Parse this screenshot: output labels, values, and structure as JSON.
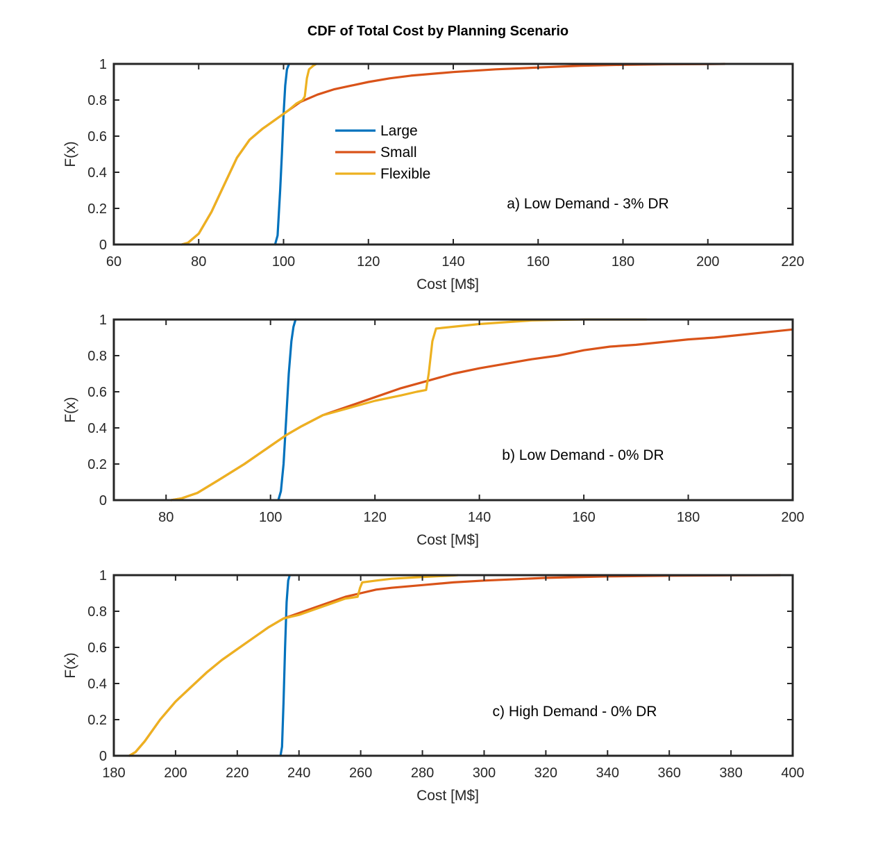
{
  "figure": {
    "title": "CDF of Total Cost by Planning Scenario"
  },
  "colors": {
    "Large": "#0072bd",
    "Small": "#d95319",
    "Flexible": "#edb120",
    "axis": "#262626"
  },
  "chart_data": [
    {
      "type": "line",
      "title": "",
      "annotation": "a) Low Demand - 3% DR",
      "xlabel": "Cost [M$]",
      "ylabel": "F(x)",
      "xlim": [
        60,
        220
      ],
      "ylim": [
        0,
        1
      ],
      "xticks": [
        60,
        80,
        100,
        120,
        140,
        160,
        180,
        200,
        220
      ],
      "yticks": [
        0,
        0.2,
        0.4,
        0.6,
        0.8,
        1
      ],
      "grid": false,
      "legend": {
        "placement": "inside-upper-middle",
        "entries": [
          "Large",
          "Small",
          "Flexible"
        ]
      },
      "series": [
        {
          "name": "Large",
          "x": [
            98,
            98.6,
            99.2,
            99.6,
            100,
            100.4,
            100.8,
            101.3
          ],
          "y": [
            0,
            0.05,
            0.3,
            0.5,
            0.72,
            0.88,
            0.97,
            1.0
          ]
        },
        {
          "name": "Small",
          "x": [
            76,
            77.5,
            80,
            83,
            86,
            89,
            92,
            95,
            98,
            101,
            104,
            108,
            112,
            116,
            120,
            125,
            130,
            140,
            150,
            160,
            170,
            180,
            190,
            200,
            204
          ],
          "y": [
            0,
            0.01,
            0.06,
            0.18,
            0.33,
            0.48,
            0.58,
            0.64,
            0.69,
            0.74,
            0.79,
            0.83,
            0.86,
            0.88,
            0.9,
            0.92,
            0.935,
            0.955,
            0.97,
            0.98,
            0.99,
            0.995,
            0.998,
            0.999,
            1.0
          ]
        },
        {
          "name": "Flexible",
          "x": [
            76,
            77.5,
            80,
            83,
            86,
            89,
            92,
            95,
            98,
            101,
            103,
            104.5,
            105,
            105.5,
            106,
            107,
            107.7
          ],
          "y": [
            0,
            0.01,
            0.06,
            0.18,
            0.33,
            0.48,
            0.58,
            0.64,
            0.69,
            0.74,
            0.78,
            0.8,
            0.82,
            0.92,
            0.97,
            0.99,
            1.0
          ]
        }
      ]
    },
    {
      "type": "line",
      "title": "",
      "annotation": "b) Low Demand - 0% DR",
      "xlabel": "Cost [M$]",
      "ylabel": "F(x)",
      "xlim": [
        70,
        200
      ],
      "ylim": [
        0,
        1
      ],
      "xticks": [
        80,
        100,
        120,
        140,
        160,
        180,
        200
      ],
      "yticks": [
        0,
        0.2,
        0.4,
        0.6,
        0.8,
        1
      ],
      "grid": false,
      "series": [
        {
          "name": "Large",
          "x": [
            101.5,
            102,
            102.5,
            103,
            103.5,
            104,
            104.4,
            104.8
          ],
          "y": [
            0,
            0.05,
            0.2,
            0.45,
            0.7,
            0.88,
            0.96,
            1.0
          ]
        },
        {
          "name": "Small",
          "x": [
            81,
            83,
            86,
            90,
            95,
            100,
            103,
            106,
            110,
            115,
            120,
            125,
            130,
            135,
            140,
            145,
            150,
            155,
            160,
            165,
            170,
            175,
            180,
            185,
            190,
            195,
            200
          ],
          "y": [
            0,
            0.01,
            0.04,
            0.11,
            0.2,
            0.3,
            0.36,
            0.41,
            0.47,
            0.52,
            0.57,
            0.62,
            0.66,
            0.7,
            0.73,
            0.755,
            0.78,
            0.8,
            0.83,
            0.85,
            0.86,
            0.875,
            0.89,
            0.9,
            0.915,
            0.93,
            0.945
          ]
        },
        {
          "name": "Flexible",
          "x": [
            81,
            83,
            86,
            90,
            95,
            100,
            103,
            106,
            110,
            115,
            120,
            125,
            128,
            129.8,
            130.3,
            131,
            131.7,
            135,
            140,
            145,
            150,
            155,
            160,
            165,
            172
          ],
          "y": [
            0,
            0.01,
            0.04,
            0.11,
            0.2,
            0.3,
            0.36,
            0.41,
            0.47,
            0.51,
            0.55,
            0.58,
            0.6,
            0.61,
            0.7,
            0.88,
            0.95,
            0.96,
            0.975,
            0.985,
            0.995,
            0.998,
            1.0,
            1.0,
            1.0
          ]
        }
      ]
    },
    {
      "type": "line",
      "title": "",
      "annotation": "c) High Demand - 0% DR",
      "xlabel": "Cost [M$]",
      "ylabel": "F(x)",
      "xlim": [
        180,
        400
      ],
      "ylim": [
        0,
        1
      ],
      "xticks": [
        180,
        200,
        220,
        240,
        260,
        280,
        300,
        320,
        340,
        360,
        380,
        400
      ],
      "yticks": [
        0,
        0.2,
        0.4,
        0.6,
        0.8,
        1
      ],
      "grid": false,
      "series": [
        {
          "name": "Large",
          "x": [
            234,
            234.5,
            235,
            235.5,
            236,
            236.5,
            237
          ],
          "y": [
            0,
            0.05,
            0.3,
            0.6,
            0.85,
            0.97,
            1.0
          ]
        },
        {
          "name": "Small",
          "x": [
            185,
            187,
            190,
            195,
            200,
            205,
            210,
            215,
            220,
            225,
            230,
            235,
            240,
            245,
            250,
            255,
            260,
            265,
            270,
            280,
            290,
            300,
            320,
            340,
            360,
            380,
            396
          ],
          "y": [
            0,
            0.02,
            0.08,
            0.2,
            0.3,
            0.38,
            0.46,
            0.53,
            0.59,
            0.65,
            0.71,
            0.76,
            0.79,
            0.82,
            0.85,
            0.88,
            0.9,
            0.92,
            0.93,
            0.945,
            0.96,
            0.97,
            0.985,
            0.993,
            0.997,
            0.999,
            1.0
          ]
        },
        {
          "name": "Flexible",
          "x": [
            185,
            187,
            190,
            195,
            200,
            205,
            210,
            215,
            220,
            225,
            230,
            235,
            240,
            245,
            250,
            255,
            259,
            259.8,
            260.5,
            265,
            270,
            280,
            290,
            291.5
          ],
          "y": [
            0,
            0.02,
            0.08,
            0.2,
            0.3,
            0.38,
            0.46,
            0.53,
            0.59,
            0.65,
            0.71,
            0.76,
            0.78,
            0.81,
            0.84,
            0.87,
            0.88,
            0.93,
            0.96,
            0.97,
            0.98,
            0.99,
            0.998,
            1.0
          ]
        }
      ]
    }
  ]
}
